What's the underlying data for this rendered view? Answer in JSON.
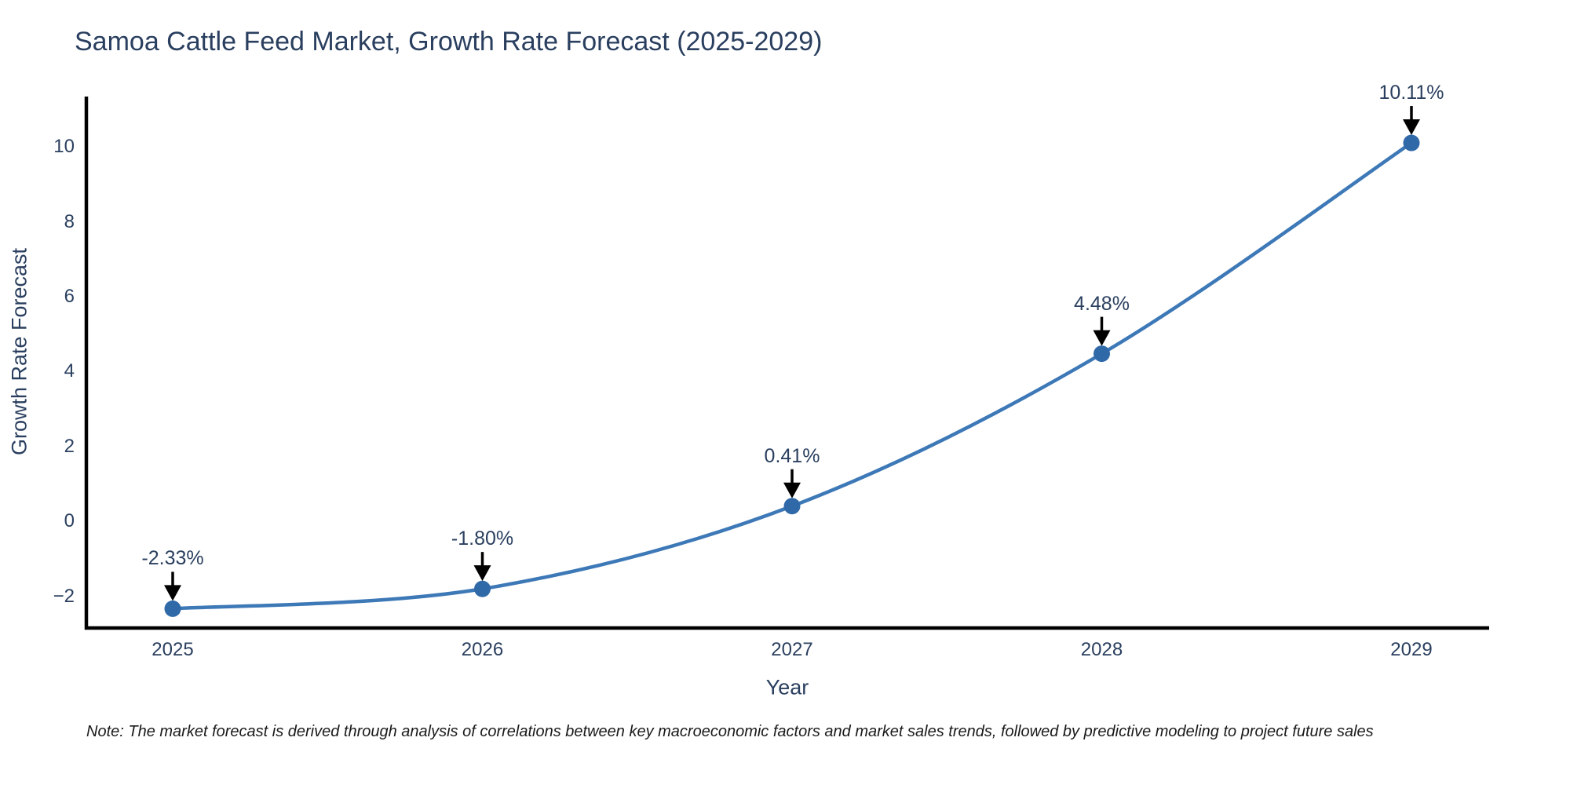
{
  "chart_data": {
    "type": "line",
    "title": "Samoa Cattle Feed Market, Growth Rate Forecast (2025-2029)",
    "xlabel": "Year",
    "ylabel": "Growth Rate Forecast",
    "x": [
      2025,
      2026,
      2027,
      2028,
      2029
    ],
    "series": [
      {
        "name": "Growth Rate Forecast",
        "values": [
          -2.33,
          -1.8,
          0.41,
          4.48,
          10.11
        ]
      }
    ],
    "point_labels": [
      "-2.33%",
      "-1.80%",
      "0.41%",
      "4.48%",
      "10.11%"
    ],
    "x_tick_labels": [
      "2025",
      "2026",
      "2027",
      "2028",
      "2029"
    ],
    "y_tick_values": [
      -2,
      0,
      2,
      4,
      6,
      8,
      10
    ],
    "y_tick_labels": [
      "−2",
      "0",
      "2",
      "4",
      "6",
      "8",
      "10"
    ],
    "ylim": [
      -2.85,
      11.3
    ],
    "line_shape": "spline",
    "grid": false,
    "legend_position": "none",
    "annotation_arrows": true,
    "note": "Note: The market forecast is derived through analysis of correlations between key macroeconomic factors and market sales trends, followed by predictive modeling to project future sales",
    "colors": {
      "line": "#3d78b7",
      "marker": "#3069a8",
      "axis_line": "#000000",
      "arrow": "#000000",
      "text": "#2a3f5f",
      "note_text": "#1a1a1a",
      "background": "#ffffff"
    }
  }
}
